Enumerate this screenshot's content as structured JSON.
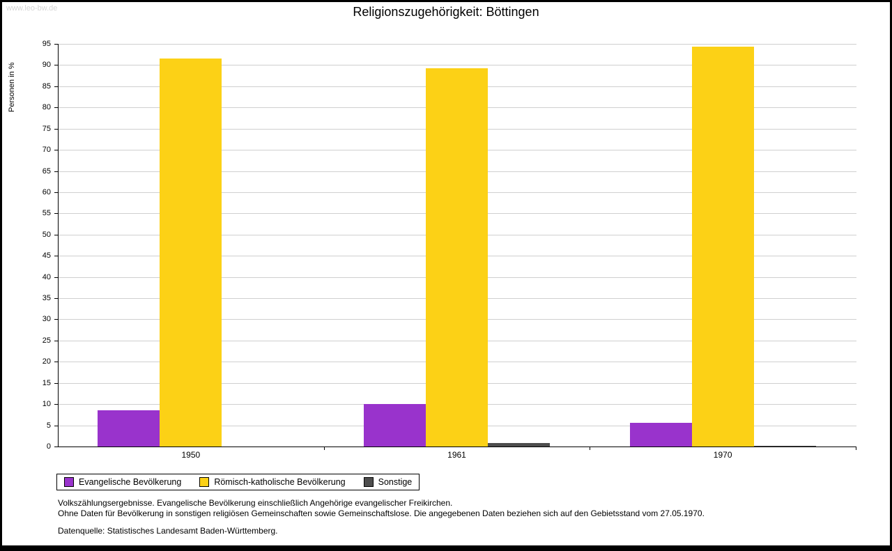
{
  "watermark": "www.leo-bw.de",
  "title": "Religionszugehörigkeit: Böttingen",
  "chart_data": {
    "type": "bar",
    "title": "Religionszugehörigkeit: Böttingen",
    "ylabel": "Personen in %",
    "xlabel": "",
    "categories": [
      "1950",
      "1961",
      "1970"
    ],
    "series": [
      {
        "name": "Evangelische Bevölkerung",
        "color": "#9933CC",
        "values": [
          8.5,
          10.1,
          5.6
        ]
      },
      {
        "name": "Römisch-katholische Bevölkerung",
        "color": "#FCD116",
        "values": [
          91.5,
          89.2,
          94.4
        ]
      },
      {
        "name": "Sonstige",
        "color": "#4D4D4D",
        "values": [
          0.0,
          0.9,
          0.2
        ]
      }
    ],
    "ylim": [
      0,
      95
    ],
    "ytick_step": 5,
    "grid": true,
    "legend_position": "bottom-left"
  },
  "footnotes": {
    "line1": "Volkszählungsergebnisse. Evangelische Bevölkerung einschließlich Angehörige evangelischer Freikirchen.",
    "line2": "Ohne Daten für Bevölkerung in sonstigen religiösen Gemeinschaften sowie Gemeinschaftslose. Die angegebenen Daten beziehen sich auf den Gebietsstand vom 27.05.1970.",
    "source": "Datenquelle: Statistisches Landesamt Baden-Württemberg."
  }
}
